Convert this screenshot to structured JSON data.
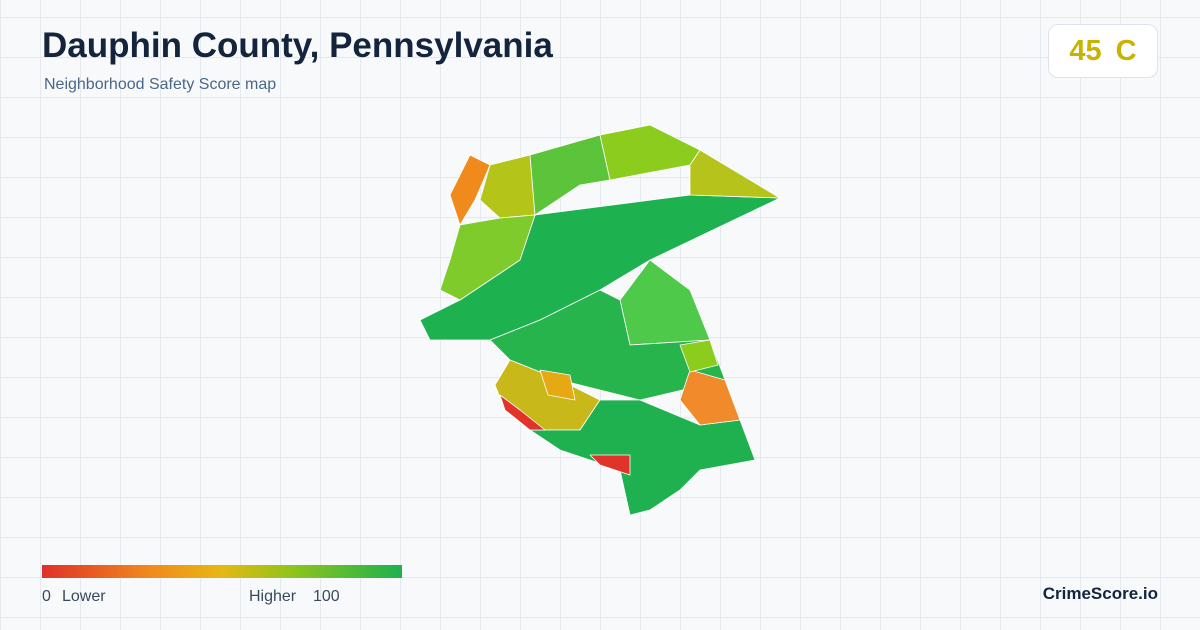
{
  "header": {
    "title": "Dauphin County, Pennsylvania",
    "subtitle": "Neighborhood Safety Score map"
  },
  "score": {
    "value": "45",
    "grade": "C"
  },
  "legend": {
    "min": "0",
    "min_label": "Lower",
    "max_label": "Higher",
    "max": "100"
  },
  "brand": "CrimeScore.io"
}
